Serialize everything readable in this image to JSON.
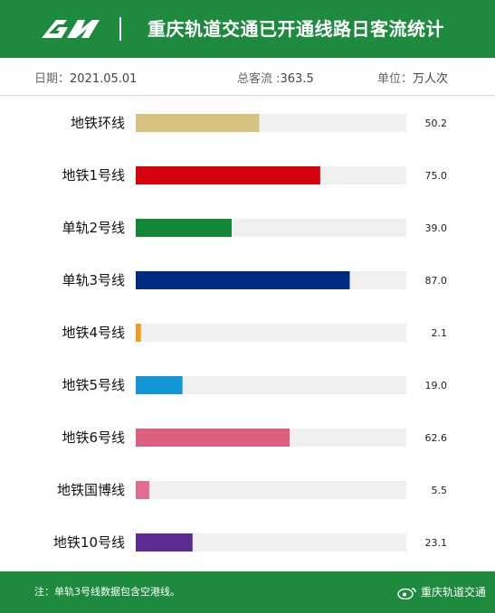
{
  "header": {
    "title": "重庆轨道交通已开通线路日客流统计"
  },
  "meta": {
    "date_label": "日期：",
    "date_value": "2021.05.01",
    "total_label": "总客流 :",
    "total_value": "363.5",
    "unit_label": "单位：",
    "unit_value": "万人次"
  },
  "colors": {
    "brand": "#1e8a3e",
    "track": "#f0f0f0"
  },
  "chart_data": {
    "type": "bar",
    "orientation": "horizontal",
    "xlim": [
      0,
      110
    ],
    "categories": [
      "地铁环线",
      "地铁1号线",
      "单轨2号线",
      "单轨3号线",
      "地铁4号线",
      "地铁5号线",
      "地铁6号线",
      "地铁国博线",
      "地铁10号线"
    ],
    "values": [
      50.2,
      75.0,
      39.0,
      87.0,
      2.1,
      19.0,
      62.6,
      5.5,
      23.1
    ],
    "value_labels": [
      "50.2",
      "75.0",
      "39.0",
      "87.0",
      "2.1",
      "19.0",
      "62.6",
      "5.5",
      "23.1"
    ],
    "bar_colors": [
      "#d8c282",
      "#d7000f",
      "#138638",
      "#002b81",
      "#ee9b21",
      "#1496d6",
      "#dc5f80",
      "#e06d8f",
      "#5c2b91"
    ],
    "grid": false,
    "legend": "none"
  },
  "footer": {
    "note": "注：单轨3号线数据包含空港线。",
    "credit": "重庆轨道交通"
  }
}
